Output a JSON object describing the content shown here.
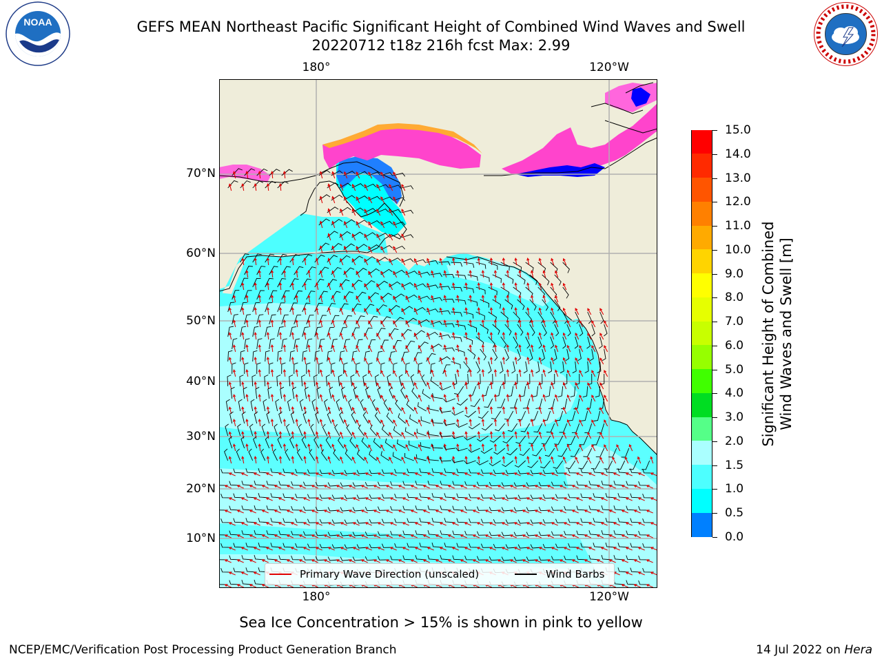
{
  "title": {
    "line1": "GEFS MEAN Northeast Pacific Significant Height of Combined Wind Waves and Swell",
    "line2": "20220712 t18z 216h fcst   Max: 2.99"
  },
  "logos": {
    "left": {
      "icon": "noaa-logo",
      "text": "NOAA",
      "ring_text": "NATIONAL OCEANIC AND ATMOSPHERIC ADMINISTRATION · U.S. DEPARTMENT OF COMMERCE"
    },
    "right": {
      "icon": "nws-logo",
      "ring_text": "NATIONAL WEATHER SERVICE"
    }
  },
  "map": {
    "lon_labels_top": [
      "180°",
      "120°W"
    ],
    "lon_labels_bottom": [
      "180°",
      "120°W"
    ],
    "lat_labels": [
      "70°N",
      "60°N",
      "50°N",
      "40°N",
      "30°N",
      "20°N",
      "10°N"
    ],
    "colors": {
      "land": "#efedda",
      "ocean_light": "#aaffff",
      "ocean_mid": "#4dffff",
      "ocean_shallow": "#00ffff",
      "coast": "#000000",
      "grid": "#b0b0b0",
      "wave_arrow": "#e00000",
      "barb": "#000000"
    },
    "legend": {
      "wave_label": "Primary Wave Direction (unscaled)",
      "barb_label": "Wind Barbs"
    }
  },
  "colorbar": {
    "title_line1": "Significant Height of Combined",
    "title_line2": "Wind Waves and Swell [m]",
    "ticks": [
      "15.0",
      "14.0",
      "13.0",
      "12.0",
      "11.0",
      "10.0",
      "9.0",
      "8.0",
      "7.0",
      "6.0",
      "5.0",
      "4.0",
      "3.0",
      "2.0",
      "1.5",
      "1.0",
      "0.5",
      "0.0"
    ],
    "colors": [
      "#ff0000",
      "#ff2a00",
      "#ff5500",
      "#ff8000",
      "#ffaa00",
      "#ffd400",
      "#ffff00",
      "#e6ff00",
      "#c8ff00",
      "#96ff00",
      "#40ff00",
      "#00dd22",
      "#55ff88",
      "#aaffff",
      "#4dffff",
      "#00ffff",
      "#0080ff",
      "#0000ff"
    ]
  },
  "footer": {
    "note": "Sea Ice Concentration > 15% is shown in pink to yellow",
    "credit": "NCEP/EMC/Verification Post Processing Product Generation Branch",
    "date_prefix": "14 Jul 2022 on",
    "machine": "Hera"
  }
}
